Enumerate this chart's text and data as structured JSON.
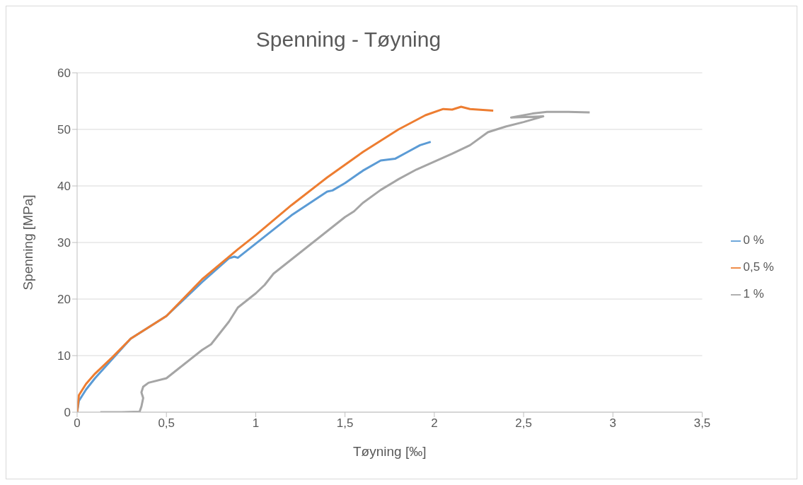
{
  "chart_data": {
    "type": "line",
    "title": "Spenning - Tøyning",
    "xlabel": "Tøyning [‰]",
    "ylabel": "Spenning [MPa]",
    "xlim": [
      0,
      3.5
    ],
    "ylim": [
      0,
      60
    ],
    "xticks": [
      0,
      {
        "value": 0.5,
        "label": "0,5"
      },
      1,
      {
        "value": 1.5,
        "label": "1,5"
      },
      2,
      {
        "value": 2.5,
        "label": "2,5"
      },
      3,
      {
        "value": 3.5,
        "label": "3,5"
      }
    ],
    "yticks": [
      0,
      10,
      20,
      30,
      40,
      50,
      60
    ],
    "grid": "y",
    "legend": "right",
    "marker": "none",
    "line_style": "solid",
    "series": [
      {
        "name": "0 %",
        "color": "#5b9bd5",
        "x": [
          0,
          0.01,
          0.05,
          0.1,
          0.2,
          0.3,
          0.5,
          0.7,
          0.85,
          0.88,
          0.9,
          1.0,
          1.2,
          1.4,
          1.43,
          1.5,
          1.6,
          1.7,
          1.78,
          1.85,
          1.92,
          1.98
        ],
        "values": [
          0,
          2,
          4,
          6,
          9.5,
          13,
          17,
          23,
          27.2,
          27.5,
          27.3,
          29.8,
          34.8,
          39,
          39.2,
          40.5,
          42.7,
          44.5,
          44.8,
          46,
          47.2,
          47.8
        ]
      },
      {
        "name": "0,5 %",
        "color": "#ed7d31",
        "x": [
          0,
          0.01,
          0.05,
          0.1,
          0.2,
          0.3,
          0.5,
          0.7,
          0.9,
          1.0,
          1.2,
          1.4,
          1.6,
          1.8,
          1.95,
          2.05,
          2.1,
          2.15,
          2.2,
          2.33
        ],
        "values": [
          0,
          3,
          5,
          6.8,
          9.8,
          13,
          17,
          23.5,
          28.8,
          31.3,
          36.6,
          41.5,
          46,
          50,
          52.5,
          53.6,
          53.5,
          54,
          53.6,
          53.3
        ]
      },
      {
        "name": "1 %",
        "color": "#a5a5a5",
        "x": [
          0.13,
          0.25,
          0.35,
          0.36,
          0.37,
          0.36,
          0.37,
          0.4,
          0.5,
          0.6,
          0.7,
          0.75,
          0.8,
          0.85,
          0.9,
          1.0,
          1.05,
          1.1,
          1.2,
          1.3,
          1.4,
          1.5,
          1.55,
          1.6,
          1.7,
          1.8,
          1.9,
          2.0,
          2.1,
          2.2,
          2.3,
          2.4,
          2.5,
          2.61,
          2.43,
          2.55,
          2.63,
          2.75,
          2.87
        ],
        "values": [
          0,
          0,
          0.1,
          1,
          2.5,
          3.5,
          4.5,
          5.2,
          6,
          8.5,
          11,
          12,
          14,
          16,
          18.5,
          21,
          22.5,
          24.5,
          27,
          29.5,
          32,
          34.5,
          35.5,
          37,
          39.3,
          41.2,
          42.9,
          44.3,
          45.7,
          47.2,
          49.5,
          50.5,
          51.3,
          52.3,
          52.1,
          52.8,
          53.1,
          53.1,
          53
        ]
      }
    ]
  }
}
